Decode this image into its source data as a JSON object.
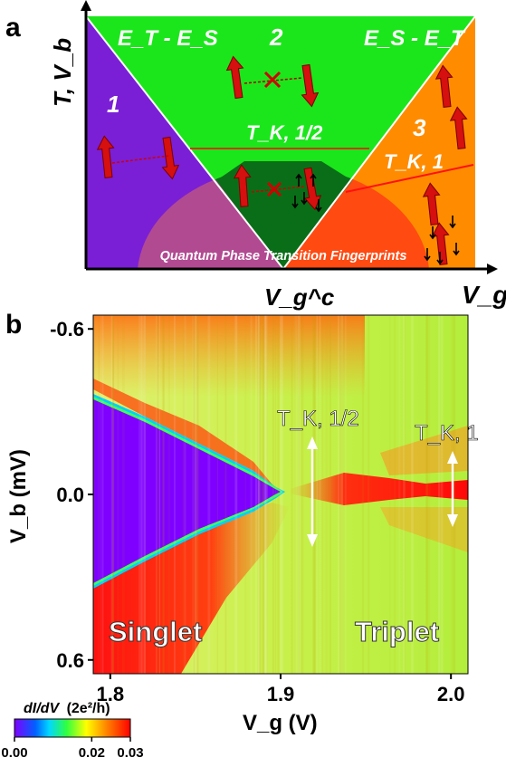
{
  "panel_a": {
    "label": "a",
    "y_axis_label": "T, V_b",
    "x_axis_label": "V_g",
    "x_marker_label": "V_g^c",
    "region_1": "1",
    "region_2": "2",
    "region_3": "3",
    "left_energy_label": "E_T - E_S",
    "right_energy_label": "E_S - E_T",
    "tk_half_label": "T_K, 1/2",
    "tk_one_label": "T_K, 1",
    "dome_label": "Quantum Phase Transition Fingerprints",
    "colors": {
      "purple": "#7a1fd6",
      "green": "#1be61b",
      "orange": "#ff8c00",
      "dark_green": "#0a6e18",
      "dome_left": "#b24a92",
      "dome_right": "#ff4a12",
      "arrow": "#d60f0f"
    }
  },
  "panel_b": {
    "label": "b",
    "singlet_label": "Singlet",
    "triplet_label": "Triplet",
    "tk_half_label": "T_K, 1/2",
    "tk_one_label": "T_K, 1",
    "colorbar": {
      "title": "dI/dV",
      "unit": "(2e²/h)",
      "ticks": [
        "0.00",
        "0.02",
        "0.03"
      ],
      "tick_values": [
        0.0,
        0.02,
        0.03
      ],
      "range": [
        0.0,
        0.03
      ],
      "colors": [
        "#7f00ff",
        "#00c8ff",
        "#32ff32",
        "#ffff00",
        "#ff8000",
        "#ff0000"
      ]
    }
  },
  "chart_data": {
    "type": "heatmap",
    "xlabel": "V_g (V)",
    "ylabel": "V_b (mV)",
    "xlim": [
      1.79,
      2.01
    ],
    "ylim": [
      0.65,
      -0.65
    ],
    "x_ticks": [
      1.8,
      1.9,
      2.0
    ],
    "x_tick_labels": [
      "1.8",
      "1.9",
      "2.0"
    ],
    "y_ticks": [
      -0.6,
      0.0,
      0.6
    ],
    "y_tick_labels": [
      "-0.6",
      "0.0",
      "0.6"
    ],
    "value_label": "dI/dV (2e²/h)",
    "value_range": [
      0.0,
      0.03
    ],
    "singlet_gap_edge": [
      {
        "vg": 1.79,
        "vb": 0.33
      },
      {
        "vg": 1.85,
        "vb": 0.18
      },
      {
        "vg": 1.88,
        "vb": 0.07
      },
      {
        "vg": 1.9,
        "vb": 0.02
      }
    ],
    "kondo_peak": {
      "vg_start": 1.92,
      "vg_end": 2.01,
      "vb": 0.0
    },
    "annotations": [
      {
        "text": "T_K, 1/2",
        "vg": 1.915,
        "vb_range": [
          -0.2,
          0.2
        ]
      },
      {
        "text": "T_K, 1",
        "vg": 1.995,
        "vb_range": [
          -0.1,
          0.1
        ]
      }
    ]
  }
}
